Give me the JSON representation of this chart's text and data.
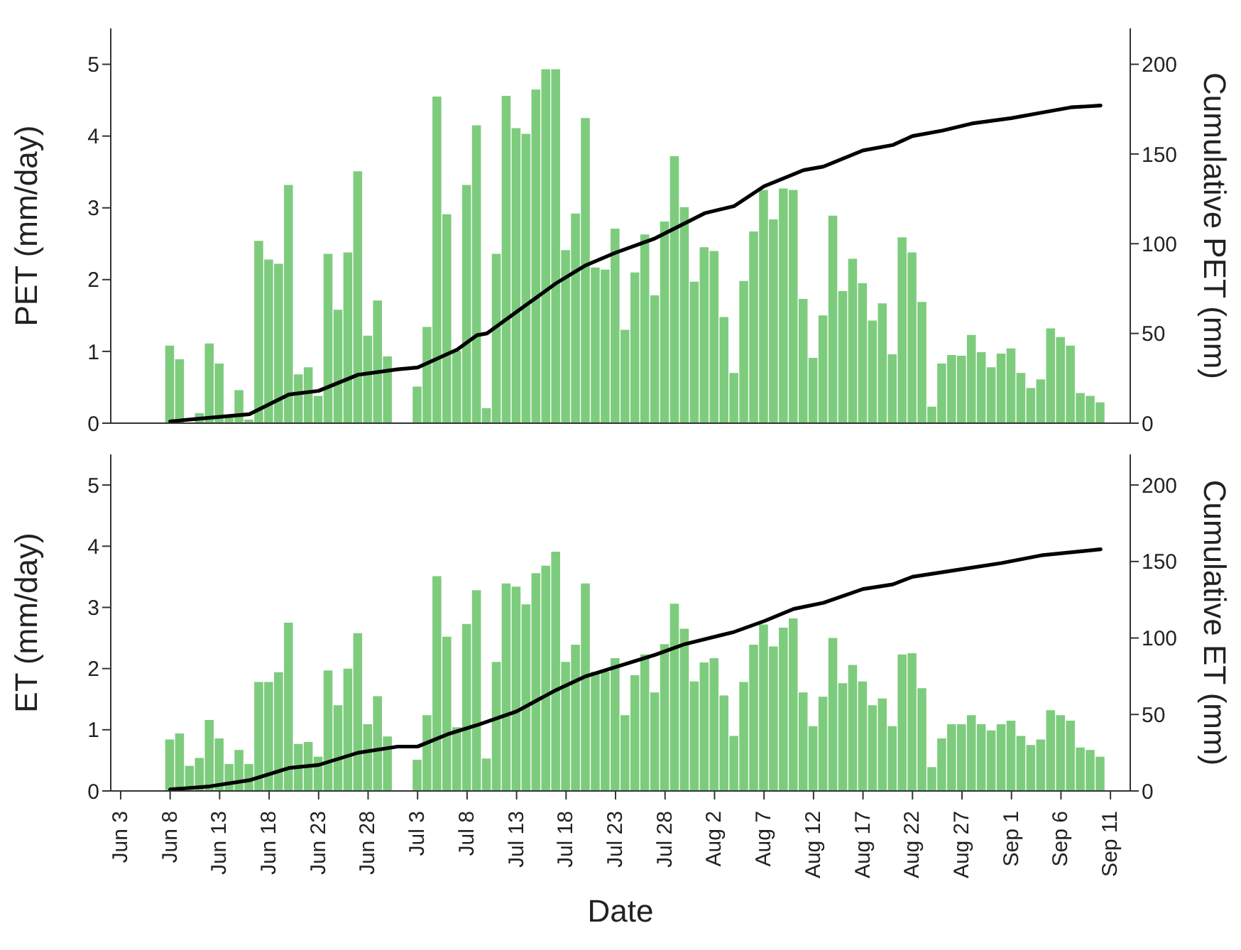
{
  "chart_data": [
    {
      "type": "bar",
      "ylabel": "PET (mm/day)",
      "y2label": "Cumulative PET (mm)",
      "tick_labels": "y",
      "x": [
        "--06-08",
        "--06-09",
        "--06-10",
        "--06-11",
        "--06-12",
        "--06-13",
        "--06-14",
        "--06-15",
        "--06-16",
        "--06-17",
        "--06-18",
        "--06-19",
        "--06-20",
        "--06-21",
        "--06-22",
        "--06-23",
        "--06-24",
        "--06-25",
        "--06-26",
        "--06-27",
        "--06-28",
        "--06-29",
        "--06-30",
        "--07-01",
        "--07-02",
        "--07-03",
        "--07-04",
        "--07-05",
        "--07-06",
        "--07-07",
        "--07-08",
        "--07-09",
        "--07-10",
        "--07-11",
        "--07-12",
        "--07-13",
        "--07-14",
        "--07-15",
        "--07-16",
        "--07-17",
        "--07-18",
        "--07-19",
        "--07-20",
        "--07-21",
        "--07-22",
        "--07-23",
        "--07-24",
        "--07-25",
        "--07-26",
        "--07-27",
        "--07-28",
        "--07-29",
        "--07-30",
        "--07-31",
        "--08-01",
        "--08-02",
        "--08-03",
        "--08-04",
        "--08-05",
        "--08-06",
        "--08-07",
        "--08-08",
        "--08-09",
        "--08-10",
        "--08-11",
        "--08-12",
        "--08-13",
        "--08-14",
        "--08-15",
        "--08-16",
        "--08-17",
        "--08-18",
        "--08-19",
        "--08-20",
        "--08-21",
        "--08-22",
        "--08-23",
        "--08-24",
        "--08-25",
        "--08-26",
        "--08-27",
        "--08-28",
        "--08-29",
        "--08-30",
        "--08-31",
        "--09-01",
        "--09-02",
        "--09-03",
        "--09-04",
        "--09-05",
        "--09-06",
        "--09-07",
        "--09-08",
        "--09-09",
        "--09-10"
      ],
      "series": [
        {
          "color": "#7dcc7d",
          "values": [
            1.08,
            0.89,
            null,
            0.14,
            1.11,
            0.83,
            0.08,
            0.46,
            0.05,
            2.54,
            2.28,
            2.22,
            3.32,
            0.68,
            0.78,
            0.38,
            2.36,
            1.58,
            2.38,
            3.51,
            1.22,
            1.71,
            0.93,
            null,
            null,
            0.51,
            1.34,
            4.55,
            2.91,
            1.01,
            3.32,
            4.15,
            0.21,
            2.36,
            4.56,
            4.11,
            4.03,
            4.65,
            4.93,
            4.93,
            2.41,
            2.92,
            4.25,
            2.17,
            2.14,
            2.71,
            1.3,
            2.1,
            2.63,
            1.78,
            2.81,
            3.72,
            3.01,
            1.97,
            2.45,
            2.4,
            1.48,
            0.7,
            1.98,
            2.67,
            3.25,
            2.84,
            3.27,
            3.25,
            1.73,
            0.91,
            1.5,
            2.89,
            1.84,
            2.29,
            1.95,
            1.43,
            1.67,
            0.96,
            2.59,
            2.38,
            1.69,
            0.23,
            0.83,
            0.95,
            0.94,
            1.23,
            0.99,
            0.78,
            0.97,
            1.04,
            0.7,
            0.49,
            0.61,
            1.32,
            1.2,
            1.08,
            0.42,
            0.38,
            0.29
          ]
        },
        {
          "type": "line",
          "axis": "y2",
          "color": "#000000",
          "x": [
            "--06-08",
            "--06-12",
            "--06-16",
            "--06-20",
            "--06-23",
            "--06-27",
            "--07-01",
            "--07-03",
            "--07-07",
            "--07-09",
            "--07-10",
            "--07-14",
            "--07-17",
            "--07-20",
            "--07-23",
            "--07-27",
            "--08-01",
            "--08-04",
            "--08-07",
            "--08-11",
            "--08-13",
            "--08-17",
            "--08-20",
            "--08-22",
            "--08-25",
            "--08-28",
            "--09-01",
            "--09-04",
            "--09-07",
            "--09-10"
          ],
          "values": [
            1,
            3,
            5,
            16,
            18,
            27,
            30,
            31,
            41,
            49,
            50,
            66,
            78,
            88,
            95,
            103,
            117,
            121,
            132,
            141,
            143,
            152,
            155,
            160,
            163,
            167,
            170,
            173,
            176,
            177
          ]
        }
      ],
      "xlim": [
        "--06-02",
        "--09-13"
      ],
      "xticks": [
        {
          "value": "--06-03",
          "label": "Jun 3"
        },
        {
          "value": "--06-08",
          "label": "Jun 8"
        },
        {
          "value": "--06-13",
          "label": "Jun 13"
        },
        {
          "value": "--06-18",
          "label": "Jun 18"
        },
        {
          "value": "--06-23",
          "label": "Jun 23"
        },
        {
          "value": "--06-28",
          "label": "Jun 28"
        },
        {
          "value": "--07-03",
          "label": "Jul 3"
        },
        {
          "value": "--07-08",
          "label": "Jul 8"
        },
        {
          "value": "--07-13",
          "label": "Jul 13"
        },
        {
          "value": "--07-18",
          "label": "Jul 18"
        },
        {
          "value": "--07-23",
          "label": "Jul 23"
        },
        {
          "value": "--07-28",
          "label": "Jul 28"
        },
        {
          "value": "--08-02",
          "label": "Aug 2"
        },
        {
          "value": "--08-07",
          "label": "Aug 7"
        },
        {
          "value": "--08-12",
          "label": "Aug 12"
        },
        {
          "value": "--08-17",
          "label": "Aug 17"
        },
        {
          "value": "--08-22",
          "label": "Aug 22"
        },
        {
          "value": "--08-27",
          "label": "Aug 27"
        },
        {
          "value": "--09-01",
          "label": "Sep 1"
        },
        {
          "value": "--09-06",
          "label": "Sep 6"
        },
        {
          "value": "--09-11",
          "label": "Sep 11"
        }
      ],
      "ylim": [
        0,
        5.5
      ],
      "yticks": [
        0,
        1,
        2,
        3,
        4,
        5
      ],
      "y2lim": [
        0,
        220
      ],
      "y2ticks": [
        0,
        50,
        100,
        150,
        200
      ]
    },
    {
      "type": "bar",
      "xlabel": "Date",
      "ylabel": "ET (mm/day)",
      "y2label": "Cumulative ET (mm)",
      "x": [
        "--06-08",
        "--06-09",
        "--06-10",
        "--06-11",
        "--06-12",
        "--06-13",
        "--06-14",
        "--06-15",
        "--06-16",
        "--06-17",
        "--06-18",
        "--06-19",
        "--06-20",
        "--06-21",
        "--06-22",
        "--06-23",
        "--06-24",
        "--06-25",
        "--06-26",
        "--06-27",
        "--06-28",
        "--06-29",
        "--06-30",
        "--07-01",
        "--07-02",
        "--07-03",
        "--07-04",
        "--07-05",
        "--07-06",
        "--07-07",
        "--07-08",
        "--07-09",
        "--07-10",
        "--07-11",
        "--07-12",
        "--07-13",
        "--07-14",
        "--07-15",
        "--07-16",
        "--07-17",
        "--07-18",
        "--07-19",
        "--07-20",
        "--07-21",
        "--07-22",
        "--07-23",
        "--07-24",
        "--07-25",
        "--07-26",
        "--07-27",
        "--07-28",
        "--07-29",
        "--07-30",
        "--07-31",
        "--08-01",
        "--08-02",
        "--08-03",
        "--08-04",
        "--08-05",
        "--08-06",
        "--08-07",
        "--08-08",
        "--08-09",
        "--08-10",
        "--08-11",
        "--08-12",
        "--08-13",
        "--08-14",
        "--08-15",
        "--08-16",
        "--08-17",
        "--08-18",
        "--08-19",
        "--08-20",
        "--08-21",
        "--08-22",
        "--08-23",
        "--08-24",
        "--08-25",
        "--08-26",
        "--08-27",
        "--08-28",
        "--08-29",
        "--08-30",
        "--08-31",
        "--09-01",
        "--09-02",
        "--09-03",
        "--09-04",
        "--09-05",
        "--09-06",
        "--09-07",
        "--09-08",
        "--09-09",
        "--09-10"
      ],
      "series": [
        {
          "color": "#7dcc7d",
          "values": [
            0.84,
            0.94,
            0.41,
            0.54,
            1.16,
            0.86,
            0.44,
            0.67,
            0.44,
            1.78,
            1.78,
            1.94,
            2.75,
            0.77,
            0.8,
            0.56,
            1.97,
            1.4,
            2.0,
            2.58,
            1.09,
            1.55,
            0.89,
            null,
            null,
            0.51,
            1.24,
            3.51,
            2.52,
            1.04,
            2.73,
            3.28,
            0.53,
            2.11,
            3.39,
            3.34,
            3.05,
            3.56,
            3.68,
            3.91,
            2.11,
            2.39,
            3.39,
            1.95,
            1.95,
            2.17,
            1.24,
            1.89,
            2.23,
            1.61,
            2.4,
            3.06,
            2.65,
            1.79,
            2.1,
            2.17,
            1.56,
            0.9,
            1.78,
            2.39,
            2.72,
            2.36,
            2.67,
            2.82,
            1.61,
            1.06,
            1.54,
            2.5,
            1.76,
            2.06,
            1.79,
            1.4,
            1.51,
            1.06,
            2.23,
            2.25,
            1.68,
            0.39,
            0.86,
            1.09,
            1.09,
            1.24,
            1.09,
            0.99,
            1.09,
            1.15,
            0.9,
            0.75,
            0.84,
            1.32,
            1.24,
            1.15,
            0.71,
            0.67,
            0.56
          ]
        },
        {
          "type": "line",
          "axis": "y2",
          "color": "#000000",
          "x": [
            "--06-08",
            "--06-12",
            "--06-16",
            "--06-20",
            "--06-23",
            "--06-27",
            "--07-01",
            "--07-03",
            "--07-06",
            "--07-09",
            "--07-13",
            "--07-17",
            "--07-20",
            "--07-23",
            "--07-27",
            "--07-30",
            "--08-04",
            "--08-07",
            "--08-10",
            "--08-13",
            "--08-17",
            "--08-20",
            "--08-22",
            "--08-27",
            "--08-31",
            "--09-04",
            "--09-10"
          ],
          "values": [
            1,
            3,
            7,
            15,
            17,
            25,
            29,
            29,
            37,
            43,
            52,
            66,
            75,
            81,
            89,
            96,
            104,
            111,
            119,
            123,
            132,
            135,
            140,
            145,
            149,
            154,
            158
          ]
        }
      ],
      "xlim": [
        "--06-02",
        "--09-13"
      ],
      "xticks": [
        {
          "value": "--06-03",
          "label": "Jun 3"
        },
        {
          "value": "--06-08",
          "label": "Jun 8"
        },
        {
          "value": "--06-13",
          "label": "Jun 13"
        },
        {
          "value": "--06-18",
          "label": "Jun 18"
        },
        {
          "value": "--06-23",
          "label": "Jun 23"
        },
        {
          "value": "--06-28",
          "label": "Jun 28"
        },
        {
          "value": "--07-03",
          "label": "Jul 3"
        },
        {
          "value": "--07-08",
          "label": "Jul 8"
        },
        {
          "value": "--07-13",
          "label": "Jul 13"
        },
        {
          "value": "--07-18",
          "label": "Jul 18"
        },
        {
          "value": "--07-23",
          "label": "Jul 23"
        },
        {
          "value": "--07-28",
          "label": "Jul 28"
        },
        {
          "value": "--08-02",
          "label": "Aug 2"
        },
        {
          "value": "--08-07",
          "label": "Aug 7"
        },
        {
          "value": "--08-12",
          "label": "Aug 12"
        },
        {
          "value": "--08-17",
          "label": "Aug 17"
        },
        {
          "value": "--08-22",
          "label": "Aug 22"
        },
        {
          "value": "--08-27",
          "label": "Aug 27"
        },
        {
          "value": "--09-01",
          "label": "Sep 1"
        },
        {
          "value": "--09-06",
          "label": "Sep 6"
        },
        {
          "value": "--09-11",
          "label": "Sep 11"
        }
      ],
      "ylim": [
        0,
        5.5
      ],
      "yticks": [
        0,
        1,
        2,
        3,
        4,
        5
      ],
      "y2lim": [
        0,
        220
      ],
      "y2ticks": [
        0,
        50,
        100,
        150,
        200
      ]
    }
  ]
}
